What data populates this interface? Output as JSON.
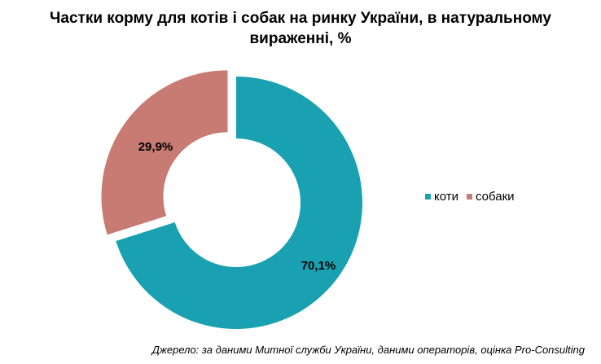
{
  "title_line1": "Частки корму для котів і собак на ринку України, в натуральному",
  "title_line2": "вираженні, %",
  "source": "Джерело: за даними Митної служби України, даними операторів, оцінка Pro-Consulting",
  "colors": {
    "cats": "#1aa1b1",
    "dogs": "#c77b72"
  },
  "chart_data": {
    "type": "pie",
    "subtype": "donut",
    "title": "Частки корму для котів і собак на ринку України, в натуральному вираженні, %",
    "categories": [
      "коти",
      "собаки"
    ],
    "values": [
      70.1,
      29.9
    ],
    "data_labels": [
      "70,1%",
      "29,9%"
    ],
    "exploded": [
      "собаки"
    ],
    "legend_placement": "right"
  }
}
